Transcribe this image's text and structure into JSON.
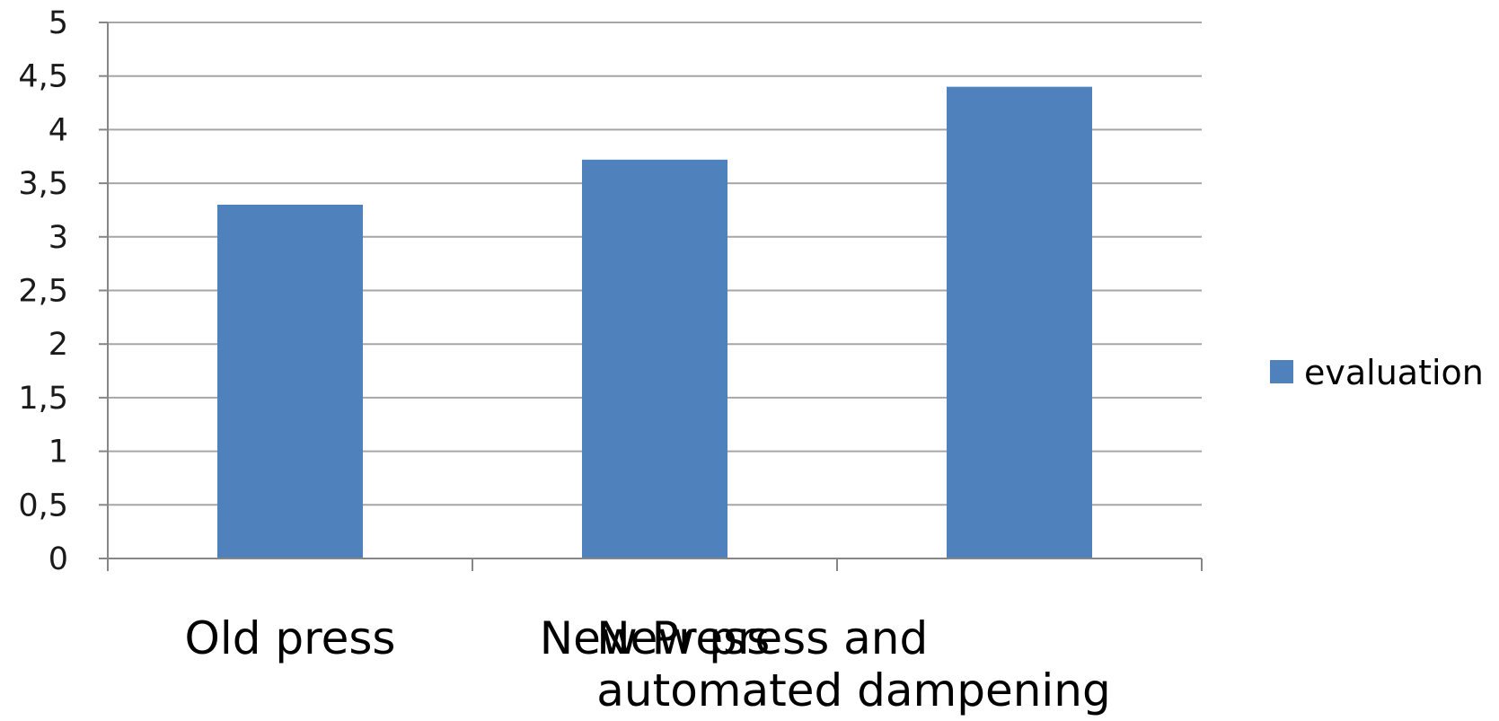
{
  "chart_data": {
    "type": "bar",
    "categories": [
      [
        "Old press"
      ],
      [
        "New Press"
      ],
      [
        "New press and",
        "automated dampening"
      ]
    ],
    "series": [
      {
        "name": "evaluation",
        "values": [
          3.3,
          3.72,
          4.4
        ],
        "color": "#4f81bd"
      }
    ],
    "y_ticks": [
      "0",
      "0,5",
      "1",
      "1,5",
      "2",
      "2,5",
      "3",
      "3,5",
      "4",
      "4,5",
      "5"
    ],
    "ylim": [
      0,
      5
    ],
    "grid": true,
    "legend": "right",
    "gridline_color": "#a6a6a6",
    "axis_color": "#868686"
  }
}
